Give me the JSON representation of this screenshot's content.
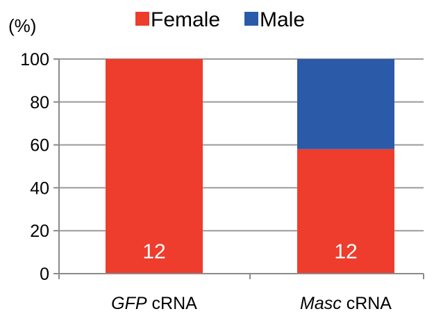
{
  "chart_data": {
    "type": "bar",
    "stacked": true,
    "categories": [
      {
        "italic": "GFP",
        "rest": " cRNA"
      },
      {
        "italic": "Masc",
        "rest": " cRNA"
      }
    ],
    "series": [
      {
        "name": "Female",
        "color": "#ee3d2c",
        "values": [
          100,
          58
        ]
      },
      {
        "name": "Male",
        "color": "#2b5ba8",
        "values": [
          0,
          42
        ]
      }
    ],
    "bar_labels": [
      "12",
      "12"
    ],
    "ylabel": "(%)",
    "ylim": [
      0,
      100
    ],
    "yticks": [
      0,
      20,
      40,
      60,
      80,
      100
    ],
    "grid": true,
    "legend": {
      "position": "top",
      "items": [
        "Female",
        "Male"
      ]
    }
  }
}
